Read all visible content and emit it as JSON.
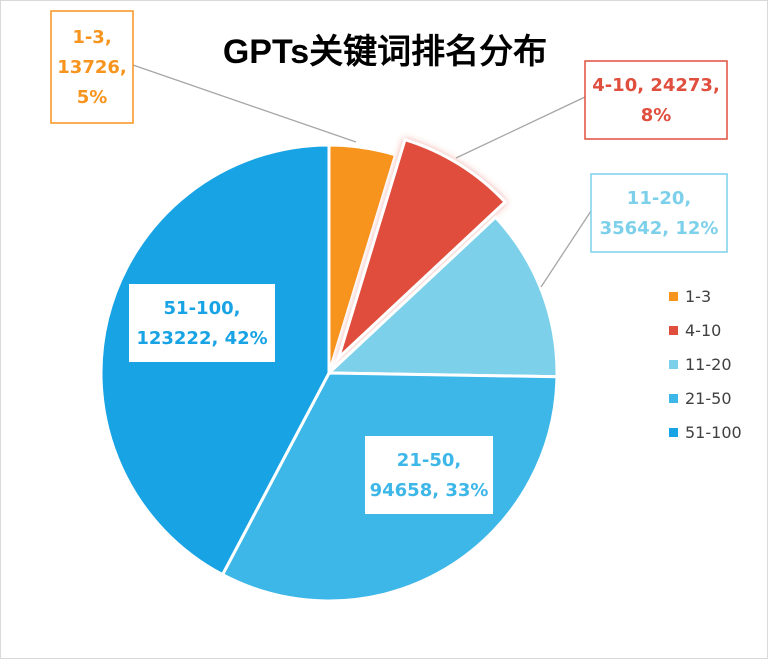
{
  "chart_data": {
    "type": "pie",
    "title": "GPTs关键词排名分布",
    "legend_position": "right",
    "slices": [
      {
        "label": "1-3",
        "value": 13726,
        "percent": "5%",
        "color": "#F7941D",
        "data_label": [
          "1-3,",
          "13726,",
          "5%"
        ]
      },
      {
        "label": "4-10",
        "value": 24273,
        "percent": "8%",
        "color": "#E04E3E",
        "data_label": [
          "4-10, 24273,",
          "8%"
        ]
      },
      {
        "label": "11-20",
        "value": 35642,
        "percent": "12%",
        "color": "#7DD0EA",
        "data_label": [
          "11-20,",
          "35642, 12%"
        ]
      },
      {
        "label": "21-50",
        "value": 94658,
        "percent": "33%",
        "color": "#3DB6E8",
        "data_label": [
          "21-50,",
          "94658, 33%"
        ]
      },
      {
        "label": "51-100",
        "value": 123222,
        "percent": "42%",
        "color": "#18A3E5",
        "data_label": [
          "51-100,",
          "123222, 42%"
        ]
      }
    ],
    "exploded_slice": "4-10"
  }
}
